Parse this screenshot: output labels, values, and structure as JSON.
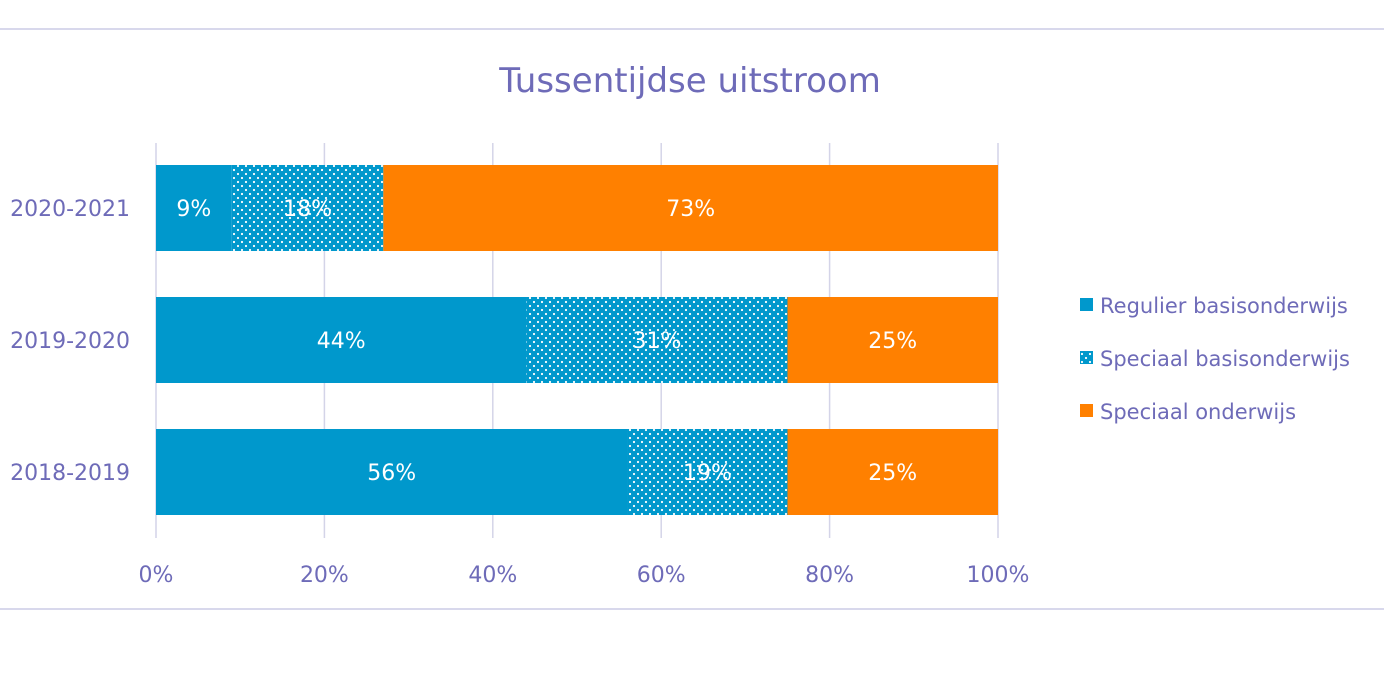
{
  "chart_data": {
    "type": "bar",
    "orientation": "horizontal",
    "stacked": true,
    "normalized": true,
    "title": "Tussentijdse uitstroom",
    "xlabel": "",
    "ylabel": "",
    "categories": [
      "2020-2021",
      "2019-2020",
      "2018-2019"
    ],
    "series": [
      {
        "name": "Regulier basisonderwijs",
        "values": [
          9,
          44,
          56
        ],
        "labels": [
          "9%",
          "44%",
          "56%"
        ],
        "color": "#0098cc",
        "pattern": "solid"
      },
      {
        "name": "Speciaal basisonderwijs",
        "values": [
          18,
          31,
          19
        ],
        "labels": [
          "18%",
          "31%",
          "19%"
        ],
        "color": "#0098cc",
        "pattern": "dotted"
      },
      {
        "name": "Speciaal onderwijs",
        "values": [
          73,
          25,
          25
        ],
        "labels": [
          "73%",
          "25%",
          "25%"
        ],
        "color": "#ff8000",
        "pattern": "solid"
      }
    ],
    "xlim": [
      0,
      100
    ],
    "xticks": [
      "0%",
      "20%",
      "40%",
      "60%",
      "80%",
      "100%"
    ],
    "grid": true,
    "legend": "right"
  }
}
